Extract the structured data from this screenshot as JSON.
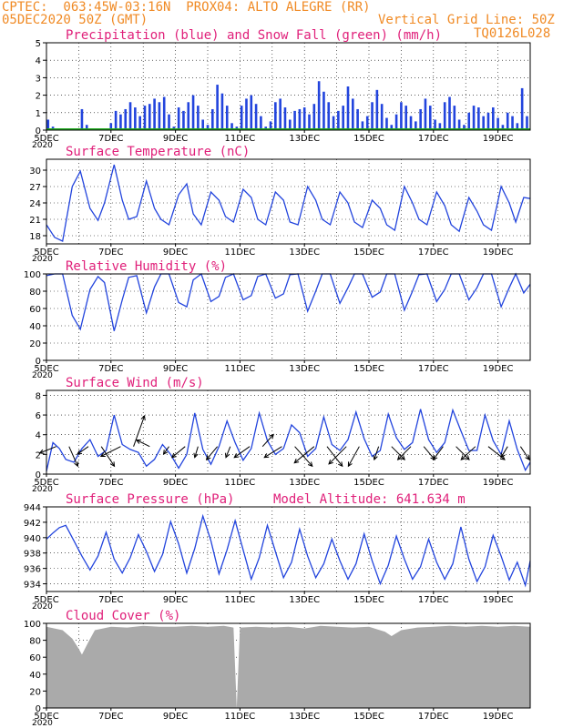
{
  "header": {
    "line1": "CPTEC:  063:45W-03:16N  PROX04: ALTO ALEGRE (RR)",
    "line2_left": "05DEC2020 50Z (GMT)",
    "line2_right": "Vertical Grid Line: 50Z",
    "line3_right": "TQ0126L028"
  },
  "x_tick_labels": [
    "5DEC",
    "7DEC",
    "9DEC",
    "11DEC",
    "13DEC",
    "15DEC",
    "17DEC",
    "19DEC"
  ],
  "x_tick_days": [
    5,
    7,
    9,
    11,
    13,
    15,
    17,
    19
  ],
  "year_label": "2020",
  "x_range_days": [
    5,
    20
  ],
  "chart_data": [
    {
      "type": "bar",
      "title": "Precipitation (blue) and Snow Fall (green) (mm/h)",
      "ylim": [
        0,
        5
      ],
      "yticks": [
        0,
        1,
        2,
        3,
        4,
        5
      ],
      "series": [
        {
          "name": "Precipitation",
          "color": "#2244dd",
          "x": [
            5.05,
            5.2,
            5.35,
            5.5,
            5.65,
            5.8,
            5.95,
            6.1,
            6.25,
            6.4,
            6.55,
            6.7,
            6.85,
            7.0,
            7.15,
            7.3,
            7.45,
            7.6,
            7.75,
            7.9,
            8.05,
            8.2,
            8.35,
            8.5,
            8.65,
            8.8,
            8.95,
            9.1,
            9.25,
            9.4,
            9.55,
            9.7,
            9.85,
            10.0,
            10.15,
            10.3,
            10.45,
            10.6,
            10.75,
            10.9,
            11.05,
            11.2,
            11.35,
            11.5,
            11.65,
            11.8,
            11.95,
            12.1,
            12.25,
            12.4,
            12.55,
            12.7,
            12.85,
            13.0,
            13.15,
            13.3,
            13.45,
            13.6,
            13.75,
            13.9,
            14.05,
            14.2,
            14.35,
            14.5,
            14.65,
            14.8,
            14.95,
            15.1,
            15.25,
            15.4,
            15.55,
            15.7,
            15.85,
            16.0,
            16.15,
            16.3,
            16.45,
            16.6,
            16.75,
            16.9,
            17.05,
            17.2,
            17.35,
            17.5,
            17.65,
            17.8,
            17.95,
            18.1,
            18.25,
            18.4,
            18.55,
            18.7,
            18.85,
            19.0,
            19.15,
            19.3,
            19.45,
            19.6,
            19.75,
            19.9
          ],
          "y": [
            0.6,
            0.2,
            0.0,
            0.0,
            0.0,
            0.0,
            0.1,
            1.2,
            0.3,
            0.0,
            0.0,
            0.0,
            0.1,
            0.4,
            1.1,
            0.9,
            1.2,
            1.6,
            1.3,
            0.8,
            1.4,
            1.5,
            1.8,
            1.6,
            1.9,
            0.9,
            0.2,
            1.3,
            1.1,
            1.6,
            2.0,
            1.4,
            0.6,
            0.3,
            1.2,
            2.6,
            2.1,
            1.4,
            0.4,
            0.2,
            1.4,
            1.8,
            2.0,
            1.5,
            0.8,
            0.2,
            0.5,
            1.6,
            1.8,
            1.3,
            0.6,
            1.1,
            1.2,
            1.3,
            0.9,
            1.5,
            2.8,
            2.2,
            1.6,
            0.8,
            1.1,
            1.4,
            2.5,
            1.8,
            1.2,
            0.5,
            0.8,
            1.6,
            2.3,
            1.5,
            0.7,
            0.3,
            0.9,
            1.6,
            1.4,
            0.8,
            0.5,
            1.2,
            1.8,
            1.4,
            0.6,
            0.4,
            1.6,
            1.9,
            1.4,
            0.6,
            0.3,
            1.0,
            1.4,
            1.3,
            0.8,
            1.0,
            1.3,
            0.7,
            0.3,
            1.0,
            0.8,
            0.4,
            2.4,
            0.8
          ]
        },
        {
          "name": "Snow Fall",
          "color": "#22aa22",
          "x": [
            5.0,
            20.0
          ],
          "y": [
            0.0,
            0.0
          ]
        }
      ]
    },
    {
      "type": "line",
      "title": "Surface Temperature (nC)",
      "ylim": [
        16.5,
        32
      ],
      "yticks": [
        18,
        21,
        24,
        27,
        30
      ],
      "series": [
        {
          "name": "Surface Temperature",
          "color": "#2244dd",
          "x": [
            5.0,
            5.25,
            5.5,
            5.8,
            6.05,
            6.35,
            6.6,
            6.8,
            7.1,
            7.35,
            7.55,
            7.8,
            8.1,
            8.35,
            8.55,
            8.8,
            9.1,
            9.35,
            9.55,
            9.8,
            10.1,
            10.35,
            10.55,
            10.8,
            11.1,
            11.35,
            11.55,
            11.8,
            12.1,
            12.35,
            12.55,
            12.8,
            13.1,
            13.35,
            13.55,
            13.8,
            14.1,
            14.35,
            14.55,
            14.8,
            15.1,
            15.35,
            15.55,
            15.8,
            16.1,
            16.35,
            16.55,
            16.8,
            17.1,
            17.35,
            17.55,
            17.8,
            18.1,
            18.35,
            18.55,
            18.8,
            19.1,
            19.35,
            19.55,
            19.8,
            20.0
          ],
          "y": [
            20.0,
            17.7,
            17.0,
            27.0,
            29.8,
            23.0,
            20.8,
            24.0,
            31.0,
            24.5,
            21.0,
            21.5,
            28.0,
            23.0,
            21.0,
            20.0,
            25.5,
            27.5,
            22.0,
            20.0,
            26.0,
            24.5,
            21.5,
            20.5,
            26.5,
            25.0,
            21.0,
            20.0,
            26.0,
            24.5,
            20.5,
            20.0,
            27.0,
            24.5,
            21.0,
            20.0,
            26.0,
            24.0,
            20.5,
            19.5,
            24.5,
            23.0,
            20.0,
            19.0,
            27.0,
            24.0,
            21.0,
            20.0,
            26.0,
            23.5,
            20.0,
            18.8,
            25.0,
            22.5,
            20.0,
            19.0,
            27.0,
            24.0,
            20.5,
            25.0,
            24.8
          ]
        }
      ]
    },
    {
      "type": "line",
      "title": "Relative Humidity (%)",
      "ylim": [
        0,
        100
      ],
      "yticks": [
        0,
        20,
        40,
        60,
        80,
        100
      ],
      "series": [
        {
          "name": "Relative Humidity",
          "color": "#2244dd",
          "x": [
            5.0,
            5.25,
            5.5,
            5.8,
            6.05,
            6.35,
            6.6,
            6.8,
            7.1,
            7.35,
            7.55,
            7.8,
            8.1,
            8.35,
            8.55,
            8.8,
            9.1,
            9.35,
            9.55,
            9.8,
            10.1,
            10.35,
            10.55,
            10.8,
            11.1,
            11.35,
            11.55,
            11.8,
            12.1,
            12.35,
            12.55,
            12.8,
            13.1,
            13.35,
            13.55,
            13.8,
            14.1,
            14.35,
            14.55,
            14.8,
            15.1,
            15.35,
            15.55,
            15.8,
            16.1,
            16.35,
            16.55,
            16.8,
            17.1,
            17.35,
            17.55,
            17.8,
            18.1,
            18.35,
            18.55,
            18.8,
            19.1,
            19.35,
            19.55,
            19.8,
            20.0
          ],
          "y": [
            98,
            100,
            100,
            52,
            36,
            82,
            97,
            90,
            34,
            70,
            96,
            98,
            55,
            85,
            100,
            100,
            67,
            62,
            93,
            100,
            68,
            74,
            96,
            100,
            70,
            75,
            97,
            100,
            72,
            77,
            99,
            100,
            57,
            80,
            100,
            100,
            66,
            84,
            100,
            100,
            73,
            79,
            100,
            100,
            58,
            80,
            99,
            100,
            68,
            82,
            100,
            100,
            70,
            84,
            100,
            100,
            62,
            84,
            100,
            78,
            88
          ]
        }
      ]
    },
    {
      "type": "line",
      "title": "Surface Wind (m/s)",
      "ylim": [
        0,
        8.5
      ],
      "yticks": [
        0,
        2,
        4,
        6,
        8
      ],
      "series": [
        {
          "name": "Surface Wind",
          "color": "#2244dd",
          "x": [
            5.0,
            5.2,
            5.4,
            5.6,
            5.85,
            6.1,
            6.35,
            6.6,
            6.85,
            7.1,
            7.35,
            7.6,
            7.85,
            8.1,
            8.35,
            8.6,
            8.85,
            9.1,
            9.35,
            9.6,
            9.85,
            10.1,
            10.35,
            10.6,
            10.85,
            11.1,
            11.35,
            11.6,
            11.85,
            12.1,
            12.35,
            12.6,
            12.85,
            13.1,
            13.35,
            13.6,
            13.85,
            14.1,
            14.35,
            14.6,
            14.85,
            15.1,
            15.35,
            15.6,
            15.85,
            16.1,
            16.35,
            16.6,
            16.85,
            17.1,
            17.35,
            17.6,
            17.85,
            18.1,
            18.35,
            18.6,
            18.85,
            19.1,
            19.35,
            19.6,
            19.85,
            20.0
          ],
          "y": [
            0.3,
            3.2,
            2.6,
            1.5,
            1.2,
            2.6,
            3.5,
            1.8,
            2.4,
            6.0,
            3.0,
            2.5,
            2.2,
            0.8,
            1.5,
            3.0,
            2.0,
            0.6,
            2.0,
            6.2,
            2.5,
            1.0,
            2.8,
            5.4,
            3.2,
            1.4,
            2.6,
            6.2,
            3.4,
            2.0,
            2.6,
            5.0,
            4.2,
            1.8,
            2.6,
            5.8,
            3.0,
            2.4,
            3.5,
            6.3,
            3.6,
            1.8,
            2.4,
            6.1,
            3.7,
            2.5,
            3.2,
            6.6,
            3.5,
            2.2,
            3.2,
            6.5,
            4.4,
            2.4,
            2.4,
            6.0,
            3.4,
            2.0,
            5.4,
            2.5,
            0.4,
            1.2
          ]
        },
        {
          "name": "Wind vectors",
          "color": "#000000",
          "x": [
            5.3,
            5.7,
            6.3,
            6.7,
            7.3,
            7.7,
            8.2,
            8.8,
            9.3,
            9.7,
            10.3,
            10.7,
            11.3,
            11.7,
            12.3,
            12.7,
            13.3,
            13.7,
            14.3,
            14.7,
            15.3,
            15.7,
            16.3,
            16.7,
            17.3,
            17.7,
            18.3,
            18.7,
            19.3,
            19.7
          ],
          "u": [
            -1.5,
            0.8,
            -1.0,
            1.2,
            -1.8,
            1.0,
            -1.2,
            -0.5,
            -1.2,
            -0.3,
            -1.0,
            -0.4,
            -1.4,
            1.0,
            -1.6,
            1.6,
            -1.8,
            1.4,
            -1.6,
            -1.0,
            -0.4,
            1.2,
            -1.2,
            1.0,
            -0.9,
            1.2,
            -1.3,
            1.5,
            -0.6,
            0.8
          ],
          "v": [
            -0.6,
            -1.8,
            -0.7,
            -1.8,
            -0.9,
            2.8,
            0.6,
            -0.7,
            -1.0,
            -1.0,
            -1.2,
            -1.0,
            -1.0,
            1.1,
            -1.0,
            -1.8,
            -1.5,
            -1.8,
            -1.6,
            -1.8,
            -1.2,
            -1.2,
            -1.2,
            -1.2,
            -1.2,
            -1.2,
            -1.2,
            -1.2,
            -1.0,
            -1.2
          ]
        }
      ]
    },
    {
      "type": "line",
      "title": "Surface Pressure (hPa)",
      "annotation": "Model Altitude: 641.634 m",
      "ylim": [
        933,
        944
      ],
      "yticks": [
        934,
        936,
        938,
        940,
        942,
        944
      ],
      "series": [
        {
          "name": "Surface Pressure",
          "color": "#2244dd",
          "x": [
            5.0,
            5.2,
            5.4,
            5.6,
            5.85,
            6.1,
            6.35,
            6.6,
            6.85,
            7.1,
            7.35,
            7.6,
            7.85,
            8.1,
            8.35,
            8.6,
            8.85,
            9.1,
            9.35,
            9.6,
            9.85,
            10.1,
            10.35,
            10.6,
            10.85,
            11.1,
            11.35,
            11.6,
            11.85,
            12.1,
            12.35,
            12.6,
            12.85,
            13.1,
            13.35,
            13.6,
            13.85,
            14.1,
            14.35,
            14.6,
            14.85,
            15.1,
            15.35,
            15.6,
            15.85,
            16.1,
            16.35,
            16.6,
            16.85,
            17.1,
            17.35,
            17.6,
            17.85,
            18.1,
            18.35,
            18.6,
            18.85,
            19.1,
            19.35,
            19.6,
            19.85,
            20.0
          ],
          "y": [
            939.8,
            940.6,
            941.3,
            941.6,
            939.6,
            937.6,
            935.8,
            937.6,
            940.7,
            937.2,
            935.4,
            937.4,
            940.4,
            938.2,
            935.6,
            937.8,
            942.1,
            939.2,
            935.4,
            938.6,
            942.8,
            939.6,
            935.3,
            938.4,
            942.2,
            938.4,
            934.6,
            937.4,
            941.6,
            938.2,
            934.8,
            936.8,
            941.1,
            937.6,
            934.8,
            936.6,
            939.8,
            937.0,
            934.6,
            936.6,
            940.5,
            937.0,
            934.0,
            936.4,
            940.2,
            937.2,
            934.6,
            936.2,
            939.8,
            936.8,
            934.6,
            936.6,
            941.4,
            937.2,
            934.3,
            936.2,
            940.3,
            937.6,
            934.5,
            936.8,
            933.8,
            937.0
          ]
        }
      ]
    },
    {
      "type": "area",
      "title": "Cloud Cover (%)",
      "ylim": [
        0,
        100
      ],
      "yticks": [
        0,
        20,
        40,
        60,
        80,
        100
      ],
      "series": [
        {
          "name": "Cloud Cover",
          "color": "#aaaaaa",
          "x": [
            5.0,
            5.5,
            5.8,
            6.0,
            6.1,
            6.3,
            6.5,
            7.0,
            7.5,
            8.0,
            8.5,
            9.0,
            9.5,
            10.0,
            10.5,
            10.8,
            10.9,
            11.0,
            11.5,
            12.0,
            12.5,
            13.0,
            13.5,
            14.0,
            14.5,
            15.0,
            15.5,
            15.7,
            16.0,
            16.5,
            17.0,
            17.5,
            18.0,
            18.5,
            19.0,
            19.5,
            20.0
          ],
          "y": [
            96,
            92,
            82,
            70,
            63,
            78,
            92,
            96,
            95,
            97,
            96,
            96,
            97,
            96,
            97,
            95,
            0,
            95,
            96,
            95,
            96,
            94,
            97,
            96,
            95,
            96,
            90,
            85,
            92,
            95,
            96,
            97,
            96,
            97,
            96,
            97,
            96
          ]
        }
      ]
    }
  ]
}
